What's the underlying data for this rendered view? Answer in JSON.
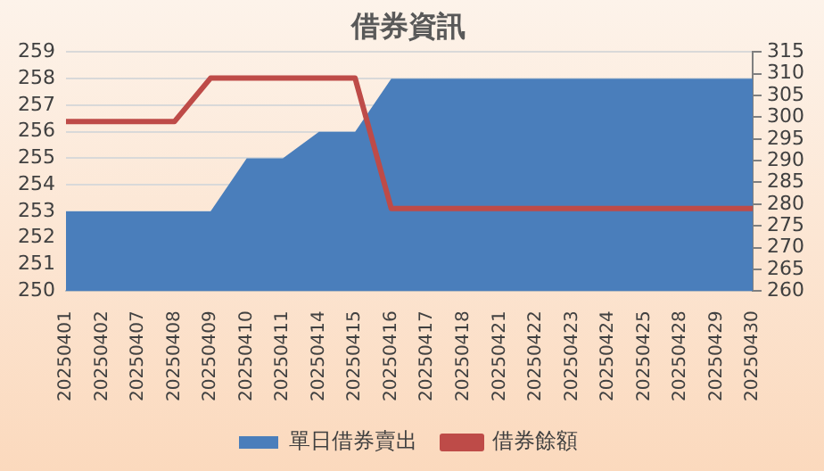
{
  "chart_data": {
    "type": "area",
    "title": "借券資訊",
    "categories": [
      "20250401",
      "20250402",
      "20250407",
      "20250408",
      "20250409",
      "20250410",
      "20250411",
      "20250414",
      "20250415",
      "20250416",
      "20250417",
      "20250418",
      "20250421",
      "20250422",
      "20250423",
      "20250424",
      "20250425",
      "20250428",
      "20250429",
      "20250430"
    ],
    "series": [
      {
        "name": "單日借券賣出",
        "color": "#4a7ebb",
        "values": [
          253,
          253,
          253,
          253,
          253,
          255,
          255,
          256,
          256,
          258,
          258,
          258,
          258,
          258,
          258,
          258,
          258,
          258,
          258,
          258
        ]
      },
      {
        "name": "借券餘額",
        "type": "line",
        "axis": "y2",
        "color": "#be4b48",
        "values": [
          299,
          299,
          299,
          299,
          309,
          309,
          309,
          309,
          309,
          279,
          279,
          279,
          279,
          279,
          279,
          279,
          279,
          279,
          279,
          279
        ]
      }
    ],
    "ylim": [
      250,
      259
    ],
    "yticks": [
      250,
      251,
      252,
      253,
      254,
      255,
      256,
      257,
      258,
      259
    ],
    "y2lim": [
      260,
      315
    ],
    "y2ticks": [
      260,
      265,
      270,
      275,
      280,
      285,
      290,
      295,
      300,
      305,
      310,
      315
    ],
    "grid": "y",
    "legend": "bottom",
    "marker": "none",
    "line_style": "solid"
  }
}
